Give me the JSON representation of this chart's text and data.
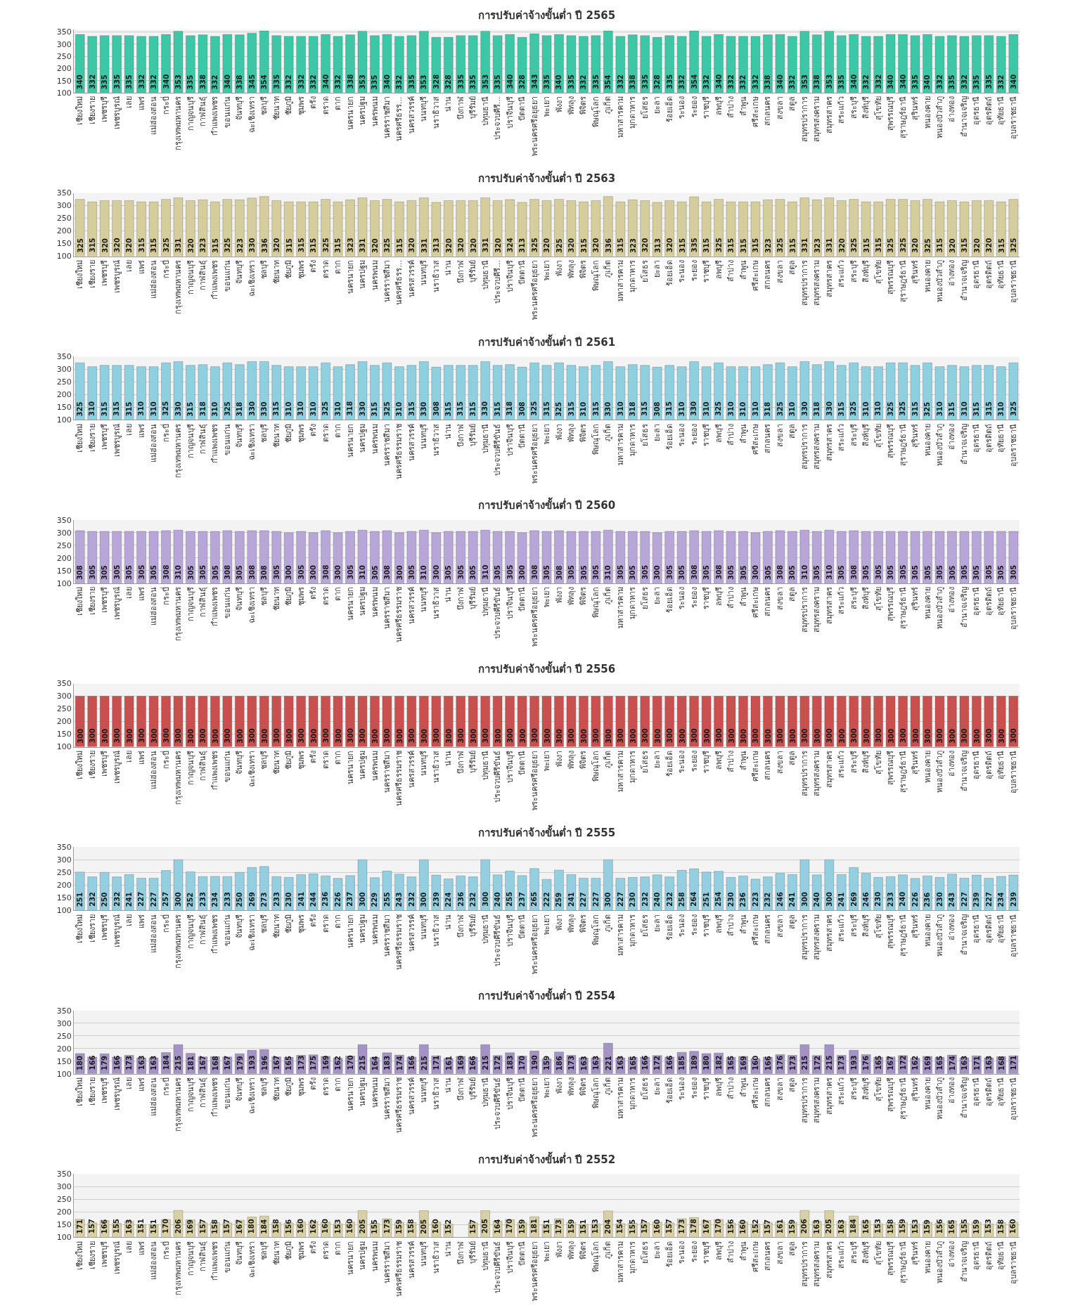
{
  "chart_data": [
    {
      "type": "bar",
      "title": "การปรับค่าจ้างขั้นต่ำ ปี 2565",
      "color": "#3cc8a6",
      "ylim": [
        100,
        360
      ],
      "yticks": [
        100,
        150,
        200,
        250,
        300,
        350
      ],
      "grid": "y",
      "data_labels": true,
      "categories": [
        "เชียงใหม่",
        "เชียงราย",
        "เพชรบุรี",
        "เพชรบูรณ์",
        "เลย",
        "แพร่",
        "แม่ฮ่องสอน",
        "กระบี่",
        "กรุงเทพมหานคร",
        "กาญจนบุรี",
        "กาฬสินธุ์",
        "กำแพงเพชร",
        "ขอนแก่น",
        "จันทบุรี",
        "ฉะเชิงเทรา",
        "ชลบุรี",
        "ชัยนาท",
        "ชัยภูมิ",
        "ชุมพร",
        "ตรัง",
        "ตราด",
        "ตาก",
        "นครนายก",
        "นครปฐม",
        "นครพนม",
        "นครราชสีมา",
        "นครศรีธรร...",
        "นครสวรรค์",
        "นนทบุรี",
        "นราธิวาส",
        "น่าน",
        "บึงกาฬ",
        "บุรีรัมย์",
        "ปทุมธานี",
        "ประจวบคีรี...",
        "ปราจีนบุรี",
        "ปัตตานี",
        "พระนครศรีอยุธยา",
        "พะเยา",
        "พังงา",
        "พัทลุง",
        "พิจิตร",
        "พิษณุโลก",
        "ภูเก็ต",
        "มหาสารคาม",
        "มุกดาหาร",
        "ยโสธร",
        "ยะลา",
        "ร้อยเอ็ด",
        "ระนอง",
        "ระยอง",
        "ราชบุรี",
        "ลพบุรี",
        "ลำปาง",
        "ลำพูน",
        "ศรีสะเกษ",
        "สกลนคร",
        "สงขลา",
        "สตูล",
        "สมุทรปราการ",
        "สมุทรสงคราม",
        "สมุทรสาคร",
        "สระแก้ว",
        "สระบุรี",
        "สิงห์บุรี",
        "สุโขทัย",
        "สุพรรณบุรี",
        "สุราษฎร์ธานี",
        "สุรินทร์",
        "หนองคาย",
        "หนองบัวลำภู",
        "อ่างทอง",
        "อำนาจเจริญ",
        "อุดรธานี",
        "อุตรดิตถ์",
        "อุทัยธานี",
        "อุบลราชธานี"
      ],
      "values": [
        340,
        332,
        335,
        335,
        335,
        332,
        332,
        340,
        353,
        335,
        338,
        332,
        340,
        338,
        345,
        354,
        335,
        332,
        332,
        332,
        340,
        332,
        338,
        353,
        335,
        340,
        332,
        335,
        353,
        328,
        328,
        335,
        335,
        353,
        335,
        340,
        328,
        343,
        335,
        340,
        335,
        332,
        335,
        354,
        332,
        338,
        335,
        328,
        335,
        332,
        354,
        332,
        340,
        332,
        332,
        332,
        338,
        340,
        332,
        353,
        338,
        353,
        335,
        340,
        332,
        332,
        340,
        340,
        335,
        340,
        332,
        335,
        332,
        335,
        335,
        332,
        340
      ]
    },
    {
      "type": "bar",
      "title": "การปรับค่าจ้างขั้นต่ำ ปี 2563",
      "color": "#d5cd9c",
      "ylim": [
        100,
        350
      ],
      "yticks": [
        100,
        150,
        200,
        250,
        300,
        350
      ],
      "grid": "y",
      "data_labels": true,
      "categories": [
        "เชียงใหม่",
        "เชียงราย",
        "เพชรบุรี",
        "เพชรบูรณ์",
        "เลย",
        "แพร่",
        "แม่ฮ่องสอน",
        "กระบี่",
        "กรุงเทพมหานคร",
        "กาญจนบุรี",
        "กาฬสินธุ์",
        "กำแพงเพชร",
        "ขอนแก่น",
        "จันทบุรี",
        "ฉะเชิงเทรา",
        "ชลบุรี",
        "ชัยนาท",
        "ชัยภูมิ",
        "ชุมพร",
        "ตรัง",
        "ตราด",
        "ตาก",
        "นครนายก",
        "นครปฐม",
        "นครพนม",
        "นครราชสีมา",
        "นครศรีธรร...",
        "นครสวรรค์",
        "นนทบุรี",
        "นราธิวาส",
        "น่าน",
        "บึงกาฬ",
        "บุรีรัมย์",
        "ปทุมธานี",
        "ประจวบคีรี...",
        "ปราจีนบุรี",
        "ปัตตานี",
        "พระนครศรีอยุธยา",
        "พะเยา",
        "พังงา",
        "พัทลุง",
        "พิจิตร",
        "พิษณุโลก",
        "ภูเก็ต",
        "มหาสารคาม",
        "มุกดาหาร",
        "ยโสธร",
        "ยะลา",
        "ร้อยเอ็ด",
        "ระนอง",
        "ระยอง",
        "ราชบุรี",
        "ลพบุรี",
        "ลำปาง",
        "ลำพูน",
        "ศรีสะเกษ",
        "สกลนคร",
        "สงขลา",
        "สตูล",
        "สมุทรปราการ",
        "สมุทรสงคราม",
        "สมุทรสาคร",
        "สระแก้ว",
        "สระบุรี",
        "สิงห์บุรี",
        "สุโขทัย",
        "สุพรรณบุรี",
        "สุราษฎร์ธานี",
        "สุรินทร์",
        "หนองคาย",
        "หนองบัวลำภู",
        "อ่างทอง",
        "อำนาจเจริญ",
        "อุดรธานี",
        "อุตรดิตถ์",
        "อุทัยธานี",
        "อุบลราชธานี"
      ],
      "values": [
        325,
        315,
        320,
        320,
        320,
        315,
        315,
        325,
        331,
        320,
        323,
        315,
        325,
        323,
        330,
        336,
        320,
        315,
        315,
        315,
        325,
        315,
        323,
        331,
        320,
        325,
        315,
        320,
        331,
        313,
        320,
        320,
        320,
        331,
        320,
        324,
        313,
        325,
        320,
        325,
        320,
        315,
        320,
        336,
        315,
        323,
        320,
        313,
        320,
        315,
        335,
        315,
        325,
        315,
        315,
        315,
        323,
        325,
        315,
        331,
        323,
        331,
        320,
        325,
        315,
        315,
        325,
        325,
        320,
        325,
        315,
        320,
        315,
        320,
        320,
        315,
        325
      ]
    },
    {
      "type": "bar",
      "title": "การปรับค่าจ้างขั้นต่ำ ปี 2561",
      "color": "#8fd0e0",
      "ylim": [
        100,
        350
      ],
      "yticks": [
        100,
        150,
        200,
        250,
        300,
        350
      ],
      "grid": "y",
      "data_labels": true,
      "categories": [
        "เชียงใหม่",
        "เชียงราย",
        "เพชรบุรี",
        "เพชรบูรณ์",
        "เลย",
        "แพร่",
        "แม่ฮ่องสอน",
        "กระบี่",
        "กรุงเทพมหานคร",
        "กาญจนบุรี",
        "กาฬสินธุ์",
        "กำแพงเพชร",
        "ขอนแก่น",
        "จันทบุรี",
        "ฉะเชิงเทรา",
        "ชลบุรี",
        "ชัยนาท",
        "ชัยภูมิ",
        "ชุมพร",
        "ตรัง",
        "ตราด",
        "ตาก",
        "นครนายก",
        "นครปฐม",
        "นครพนม",
        "นครราชสีมา",
        "นครศรีธรรมราช",
        "นครสวรรค์",
        "นนทบุรี",
        "นราธิวาส",
        "น่าน",
        "บึงกาฬ",
        "บุรีรัมย์",
        "ปทุมธานี",
        "ประจวบคีรีขันธ์",
        "ปราจีนบุรี",
        "ปัตตานี",
        "พระนครศรีอยุธยา",
        "พะเยา",
        "พังงา",
        "พัทลุง",
        "พิจิตร",
        "พิษณุโลก",
        "ภูเก็ต",
        "มหาสารคาม",
        "มุกดาหาร",
        "ยโสธร",
        "ยะลา",
        "ร้อยเอ็ด",
        "ระนอง",
        "ระยอง",
        "ราชบุรี",
        "ลพบุรี",
        "ลำปาง",
        "ลำพูน",
        "ศรีสะเกษ",
        "สกลนคร",
        "สงขลา",
        "สตูล",
        "สมุทรปราการ",
        "สมุทรสงคราม",
        "สมุทรสาคร",
        "สระแก้ว",
        "สระบุรี",
        "สิงห์บุรี",
        "สุโขทัย",
        "สุพรรณบุรี",
        "สุราษฎร์ธานี",
        "สุรินทร์",
        "หนองคาย",
        "หนองบัวลำภู",
        "อ่างทอง",
        "อำนาจเจริญ",
        "อุดรธานี",
        "อุตรดิตถ์",
        "อุทัยธานี",
        "อุบลราชธานี"
      ],
      "values": [
        325,
        310,
        315,
        315,
        315,
        310,
        310,
        325,
        330,
        315,
        318,
        310,
        325,
        318,
        330,
        330,
        315,
        310,
        310,
        310,
        325,
        310,
        318,
        330,
        315,
        325,
        310,
        315,
        330,
        308,
        315,
        315,
        315,
        330,
        315,
        318,
        308,
        325,
        315,
        325,
        315,
        310,
        315,
        330,
        310,
        318,
        315,
        308,
        315,
        310,
        330,
        310,
        325,
        310,
        310,
        310,
        318,
        325,
        310,
        330,
        318,
        330,
        315,
        325,
        310,
        310,
        325,
        325,
        315,
        325,
        310,
        315,
        310,
        315,
        315,
        310,
        325
      ]
    },
    {
      "type": "bar",
      "title": "การปรับค่าจ้างขั้นต่ำ ปี 2560",
      "color": "#b8a6d8",
      "ylim": [
        100,
        350
      ],
      "yticks": [
        100,
        150,
        200,
        250,
        300,
        350
      ],
      "grid": "y",
      "data_labels": true,
      "categories": [
        "เชียงใหม่",
        "เชียงราย",
        "เพชรบุรี",
        "เพชรบูรณ์",
        "เลย",
        "แพร่",
        "แม่ฮ่องสอน",
        "กระบี่",
        "กรุงเทพมหานคร",
        "กาญจนบุรี",
        "กาฬสินธุ์",
        "กำแพงเพชร",
        "ขอนแก่น",
        "จันทบุรี",
        "ฉะเชิงเทรา",
        "ชลบุรี",
        "ชัยนาท",
        "ชัยภูมิ",
        "ชุมพร",
        "ตรัง",
        "ตราด",
        "ตาก",
        "นครนายก",
        "นครปฐม",
        "นครพนม",
        "นครราชสีมา",
        "นครศรีธรรมราช",
        "นครสวรรค์",
        "นนทบุรี",
        "นราธิวาส",
        "น่าน",
        "บึงกาฬ",
        "บุรีรัมย์",
        "ปทุมธานี",
        "ประจวบคีรีขันธ์",
        "ปราจีนบุรี",
        "ปัตตานี",
        "พระนครศรีอยุธยา",
        "พะเยา",
        "พังงา",
        "พัทลุง",
        "พิจิตร",
        "พิษณุโลก",
        "ภูเก็ต",
        "มหาสารคาม",
        "มุกดาหาร",
        "ยโสธร",
        "ยะลา",
        "ร้อยเอ็ด",
        "ระนอง",
        "ระยอง",
        "ราชบุรี",
        "ลพบุรี",
        "ลำปาง",
        "ลำพูน",
        "ศรีสะเกษ",
        "สกลนคร",
        "สงขลา",
        "สตูล",
        "สมุทรปราการ",
        "สมุทรสงคราม",
        "สมุทรสาคร",
        "สระแก้ว",
        "สระบุรี",
        "สิงห์บุรี",
        "สุโขทัย",
        "สุพรรณบุรี",
        "สุราษฎร์ธานี",
        "สุรินทร์",
        "หนองคาย",
        "หนองบัวลำภู",
        "อ่างทอง",
        "อำนาจเจริญ",
        "อุดรธานี",
        "อุตรดิตถ์",
        "อุทัยธานี",
        "อุบลราชธานี"
      ],
      "values": [
        308,
        305,
        305,
        305,
        305,
        305,
        305,
        308,
        310,
        305,
        305,
        305,
        308,
        305,
        308,
        308,
        305,
        300,
        305,
        300,
        308,
        300,
        305,
        310,
        305,
        308,
        300,
        305,
        310,
        300,
        305,
        305,
        305,
        310,
        305,
        305,
        300,
        308,
        305,
        308,
        305,
        305,
        305,
        310,
        305,
        305,
        305,
        300,
        305,
        305,
        308,
        305,
        308,
        305,
        305,
        300,
        305,
        308,
        305,
        310,
        305,
        310,
        305,
        308,
        305,
        305,
        305,
        305,
        305,
        305,
        305,
        305,
        305,
        305,
        305,
        305,
        305
      ]
    },
    {
      "type": "bar",
      "title": "การปรับค่าจ้างขั้นต่ำ ปี 2556",
      "color": "#c9504e",
      "ylim": [
        100,
        350
      ],
      "yticks": [
        100,
        150,
        200,
        250,
        300,
        350
      ],
      "grid": "y",
      "data_labels": true,
      "categories": [
        "เชียงใหม่",
        "เชียงราย",
        "เพชรบุรี",
        "เพชรบูรณ์",
        "เลย",
        "แพร่",
        "แม่ฮ่องสอน",
        "กระบี่",
        "กรุงเทพมหานคร",
        "กาญจนบุรี",
        "กาฬสินธุ์",
        "กำแพงเพชร",
        "ขอนแก่น",
        "จันทบุรี",
        "ฉะเชิงเทรา",
        "ชลบุรี",
        "ชัยนาท",
        "ชัยภูมิ",
        "ชุมพร",
        "ตรัง",
        "ตราด",
        "ตาก",
        "นครนายก",
        "นครปฐม",
        "นครพนม",
        "นครราชสีมา",
        "นครศรีธรรมราช",
        "นครสวรรค์",
        "นนทบุรี",
        "นราธิวาส",
        "น่าน",
        "บึงกาฬ",
        "บุรีรัมย์",
        "ปทุมธานี",
        "ประจวบคีรีขันธ์",
        "ปราจีนบุรี",
        "ปัตตานี",
        "พระนครศรีอยุธยา",
        "พะเยา",
        "พังงา",
        "พัทลุง",
        "พิจิตร",
        "พิษณุโลก",
        "ภูเก็ต",
        "มหาสารคาม",
        "มุกดาหาร",
        "ยโสธร",
        "ยะลา",
        "ร้อยเอ็ด",
        "ระนอง",
        "ระยอง",
        "ราชบุรี",
        "ลพบุรี",
        "ลำปาง",
        "ลำพูน",
        "ศรีสะเกษ",
        "สกลนคร",
        "สงขลา",
        "สตูล",
        "สมุทรปราการ",
        "สมุทรสงคราม",
        "สมุทรสาคร",
        "สระแก้ว",
        "สระบุรี",
        "สิงห์บุรี",
        "สุโขทัย",
        "สุพรรณบุรี",
        "สุราษฎร์ธานี",
        "สุรินทร์",
        "หนองคาย",
        "หนองบัวลำภู",
        "อ่างทอง",
        "อำนาจเจริญ",
        "อุดรธานี",
        "อุตรดิตถ์",
        "อุทัยธานี",
        "อุบลราชธานี"
      ],
      "values": [
        300,
        300,
        300,
        300,
        300,
        300,
        300,
        300,
        300,
        300,
        300,
        300,
        300,
        300,
        300,
        300,
        300,
        300,
        300,
        300,
        300,
        300,
        300,
        300,
        300,
        300,
        300,
        300,
        300,
        300,
        300,
        300,
        300,
        300,
        300,
        300,
        300,
        300,
        300,
        300,
        300,
        300,
        300,
        300,
        300,
        300,
        300,
        300,
        300,
        300,
        300,
        300,
        300,
        300,
        300,
        300,
        300,
        300,
        300,
        300,
        300,
        300,
        300,
        300,
        300,
        300,
        300,
        300,
        300,
        300,
        300,
        300,
        300,
        300,
        300,
        300,
        300
      ]
    },
    {
      "type": "bar",
      "title": "การปรับค่าจ้างขั้นต่ำ ปี 2555",
      "color": "#93cfe0",
      "ylim": [
        100,
        350
      ],
      "yticks": [
        100,
        150,
        200,
        250,
        300,
        350
      ],
      "grid": "y",
      "data_labels": true,
      "categories": [
        "เชียงใหม่",
        "เชียงราย",
        "เพชรบุรี",
        "เพชรบูรณ์",
        "เลย",
        "แพร่",
        "แม่ฮ่องสอน",
        "กระบี่",
        "กรุงเทพมหานคร",
        "กาญจนบุรี",
        "กาฬสินธุ์",
        "กำแพงเพชร",
        "ขอนแก่น",
        "จันทบุรี",
        "ฉะเชิงเทรา",
        "ชลบุรี",
        "ชัยนาท",
        "ชัยภูมิ",
        "ชุมพร",
        "ตรัง",
        "ตราด",
        "ตาก",
        "นครนายก",
        "นครปฐม",
        "นครพนม",
        "นครราชสีมา",
        "นครศรีธรรมราช",
        "นครสวรรค์",
        "นนทบุรี",
        "นราธิวาส",
        "น่าน",
        "บึงกาฬ",
        "บุรีรัมย์",
        "ปทุมธานี",
        "ประจวบคีรีขันธ์",
        "ปราจีนบุรี",
        "ปัตตานี",
        "พระนครศรีอยุธยา",
        "พะเยา",
        "พังงา",
        "พัทลุง",
        "พิจิตร",
        "พิษณุโลก",
        "ภูเก็ต",
        "มหาสารคาม",
        "มุกดาหาร",
        "ยโสธร",
        "ยะลา",
        "ร้อยเอ็ด",
        "ระนอง",
        "ระยอง",
        "ราชบุรี",
        "ลพบุรี",
        "ลำปาง",
        "ลำพูน",
        "ศรีสะเกษ",
        "สกลนคร",
        "สงขลา",
        "สตูล",
        "สมุทรปราการ",
        "สมุทรสงคราม",
        "สมุทรสาคร",
        "สระแก้ว",
        "สระบุรี",
        "สิงห์บุรี",
        "สุโขทัย",
        "สุพรรณบุรี",
        "สุราษฎร์ธานี",
        "สุรินทร์",
        "หนองคาย",
        "หนองบัวลำภู",
        "อ่างทอง",
        "อำนาจเจริญ",
        "อุดรธานี",
        "อุตรดิตถ์",
        "อุทัยธานี",
        "อุบลราชธานี"
      ],
      "values": [
        251,
        232,
        250,
        232,
        241,
        227,
        227,
        257,
        300,
        252,
        233,
        234,
        233,
        250,
        269,
        273,
        233,
        230,
        241,
        244,
        236,
        226,
        237,
        300,
        229,
        255,
        243,
        232,
        300,
        239,
        224,
        236,
        232,
        300,
        240,
        255,
        237,
        265,
        222,
        259,
        241,
        227,
        227,
        300,
        227,
        230,
        232,
        240,
        232,
        258,
        264,
        251,
        254,
        230,
        236,
        223,
        232,
        246,
        241,
        300,
        240,
        300,
        241,
        269,
        246,
        230,
        233,
        240,
        226,
        236,
        230,
        243,
        227,
        239,
        227,
        234,
        239
      ]
    },
    {
      "type": "bar",
      "title": "การปรับค่าจ้างขั้นต่ำ ปี 2554",
      "color": "#a593c6",
      "ylim": [
        100,
        350
      ],
      "yticks": [
        100,
        150,
        200,
        250,
        300,
        350
      ],
      "grid": "y",
      "data_labels": true,
      "categories": [
        "เชียงใหม่",
        "เชียงราย",
        "เพชรบุรี",
        "เพชรบูรณ์",
        "เลย",
        "แพร่",
        "แม่ฮ่องสอน",
        "กระบี่",
        "กรุงเทพมหานคร",
        "กาญจนบุรี",
        "กาฬสินธุ์",
        "กำแพงเพชร",
        "ขอนแก่น",
        "จันทบุรี",
        "ฉะเชิงเทรา",
        "ชลบุรี",
        "ชัยนาท",
        "ชัยภูมิ",
        "ชุมพร",
        "ตรัง",
        "ตราด",
        "ตาก",
        "นครนายก",
        "นครปฐม",
        "นครพนม",
        "นครราชสีมา",
        "นครศรีธรรมราช",
        "นครสวรรค์",
        "นนทบุรี",
        "นราธิวาส",
        "น่าน",
        "บึงกาฬ",
        "บุรีรัมย์",
        "ปทุมธานี",
        "ประจวบคีรีขันธ์",
        "ปราจีนบุรี",
        "ปัตตานี",
        "พระนครศรีอยุธยา",
        "พะเยา",
        "พังงา",
        "พัทลุง",
        "พิจิตร",
        "พิษณุโลก",
        "ภูเก็ต",
        "มหาสารคาม",
        "มุกดาหาร",
        "ยโสธร",
        "ยะลา",
        "ร้อยเอ็ด",
        "ระนอง",
        "ระยอง",
        "ราชบุรี",
        "ลพบุรี",
        "ลำปาง",
        "ลำพูน",
        "ศรีสะเกษ",
        "สกลนคร",
        "สงขลา",
        "สตูล",
        "สมุทรปราการ",
        "สมุทรสงคราม",
        "สมุทรสาคร",
        "สระแก้ว",
        "สระบุรี",
        "สิงห์บุรี",
        "สุโขทัย",
        "สุพรรณบุรี",
        "สุราษฎร์ธานี",
        "สุรินทร์",
        "หนองคาย",
        "หนองบัวลำภู",
        "อ่างทอง",
        "อำนาจเจริญ",
        "อุดรธานี",
        "อุตรดิตถ์",
        "อุทัยธานี",
        "อุบลราชธานี"
      ],
      "values": [
        180,
        166,
        179,
        166,
        173,
        163,
        163,
        184,
        215,
        181,
        167,
        168,
        167,
        179,
        193,
        196,
        167,
        165,
        173,
        175,
        169,
        162,
        170,
        215,
        164,
        183,
        174,
        166,
        215,
        171,
        161,
        169,
        166,
        215,
        172,
        183,
        170,
        190,
        159,
        186,
        173,
        163,
        163,
        221,
        163,
        165,
        166,
        172,
        166,
        185,
        189,
        180,
        182,
        165,
        169,
        160,
        166,
        176,
        173,
        215,
        172,
        215,
        173,
        193,
        176,
        165,
        167,
        172,
        162,
        169,
        165,
        174,
        163,
        171,
        163,
        168,
        171
      ]
    },
    {
      "type": "bar",
      "title": "การปรับค่าจ้างขั้นต่ำ ปี 2552",
      "color": "#d8d0a2",
      "ylim": [
        100,
        350
      ],
      "yticks": [
        100,
        150,
        200,
        250,
        300,
        350
      ],
      "grid": "y",
      "data_labels": true,
      "categories": [
        "เชียงใหม่",
        "เชียงราย",
        "เพชรบุรี",
        "เพชรบูรณ์",
        "เลย",
        "แพร่",
        "แม่ฮ่องสอน",
        "กระบี่",
        "กรุงเทพมหานคร",
        "กาญจนบุรี",
        "กาฬสินธุ์",
        "กำแพงเพชร",
        "ขอนแก่น",
        "จันทบุรี",
        "ฉะเชิงเทรา",
        "ชลบุรี",
        "ชัยนาท",
        "ชัยภูมิ",
        "ชุมพร",
        "ตรัง",
        "ตราด",
        "ตาก",
        "นครนายก",
        "นครปฐม",
        "นครพนม",
        "นครราชสีมา",
        "นครศรีธรรมราช",
        "นครสวรรค์",
        "นนทบุรี",
        "นราธิวาส",
        "น่าน",
        "บึงกาฬ",
        "บุรีรัมย์",
        "ปทุมธานี",
        "ประจวบคีรีขันธ์",
        "ปราจีนบุรี",
        "ปัตตานี",
        "พระนครศรีอยุธยา",
        "พะเยา",
        "พังงา",
        "พัทลุง",
        "พิจิตร",
        "พิษณุโลก",
        "ภูเก็ต",
        "มหาสารคาม",
        "มุกดาหาร",
        "ยโสธร",
        "ยะลา",
        "ร้อยเอ็ด",
        "ระนอง",
        "ระยอง",
        "ราชบุรี",
        "ลพบุรี",
        "ลำปาง",
        "ลำพูน",
        "ศรีสะเกษ",
        "สกลนคร",
        "สงขลา",
        "สตูล",
        "สมุทรปราการ",
        "สมุทรสงคราม",
        "สมุทรสาคร",
        "สระแก้ว",
        "สระบุรี",
        "สิงห์บุรี",
        "สุโขทัย",
        "สุพรรณบุรี",
        "สุราษฎร์ธานี",
        "สุรินทร์",
        "หนองคาย",
        "หนองบัวลำภู",
        "อ่างทอง",
        "อำนาจเจริญ",
        "อุดรธานี",
        "อุตรดิตถ์",
        "อุทัยธานี",
        "อุบลราชธานี"
      ],
      "values": [
        171,
        157,
        166,
        155,
        163,
        151,
        151,
        170,
        206,
        169,
        157,
        158,
        157,
        167,
        180,
        184,
        158,
        156,
        160,
        162,
        160,
        153,
        160,
        205,
        155,
        173,
        159,
        158,
        205,
        160,
        152,
        null,
        157,
        205,
        164,
        170,
        159,
        181,
        151,
        173,
        159,
        151,
        153,
        204,
        154,
        155,
        157,
        160,
        157,
        173,
        178,
        167,
        170,
        156,
        160,
        152,
        157,
        161,
        159,
        206,
        163,
        205,
        163,
        184,
        165,
        153,
        158,
        159,
        153,
        159,
        156,
        165,
        155,
        159,
        153,
        158,
        160
      ]
    }
  ]
}
